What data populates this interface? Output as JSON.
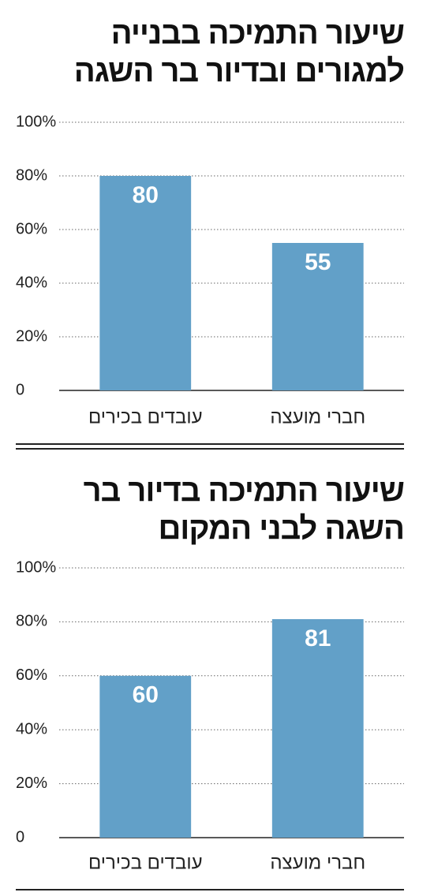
{
  "chart_data": [
    {
      "type": "bar",
      "title": "שיעור התמיכה בבנייה למגורים ובדיור בר השגה",
      "categories": [
        "עובדים בכירים",
        "חברי מועצה"
      ],
      "values": [
        80,
        55
      ],
      "color": "#62a0c8",
      "ylim": [
        0,
        100
      ],
      "yticks": [
        0,
        {
          "value": 20,
          "label": "20%"
        },
        {
          "value": 40,
          "label": "40%"
        },
        {
          "value": 60,
          "label": "60%"
        },
        {
          "value": 80,
          "label": "80%"
        },
        {
          "value": 100,
          "label": "100%"
        }
      ],
      "grid": true
    },
    {
      "type": "bar",
      "title": "שיעור התמיכה בדיור בר השגה לבני המקום",
      "categories": [
        "עובדים בכירים",
        "חברי מועצה"
      ],
      "values": [
        60,
        81
      ],
      "color": "#62a0c8",
      "ylim": [
        0,
        100
      ],
      "yticks": [
        0,
        {
          "value": 20,
          "label": "20%"
        },
        {
          "value": 40,
          "label": "40%"
        },
        {
          "value": 60,
          "label": "60%"
        },
        {
          "value": 80,
          "label": "80%"
        },
        {
          "value": 100,
          "label": "100%"
        }
      ],
      "grid": true
    }
  ]
}
